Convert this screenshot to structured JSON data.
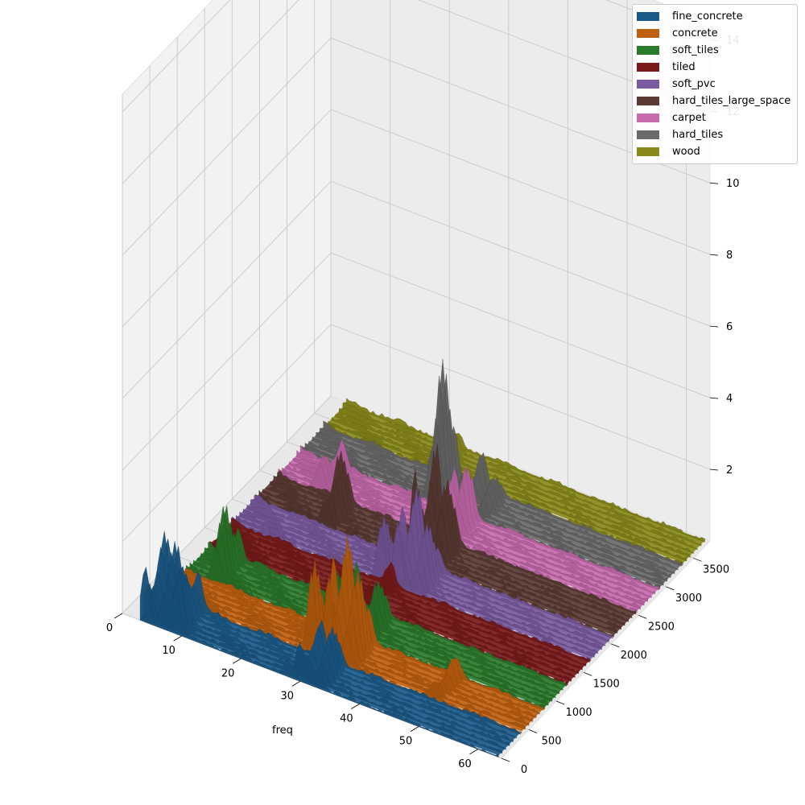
{
  "chart_data": {
    "type": "area",
    "title": "",
    "xlabel": "freq",
    "ylabel": "",
    "zlabel": "",
    "x_ticks": [
      "0",
      "10",
      "20",
      "30",
      "40",
      "50",
      "60"
    ],
    "y_ticks": [
      "0",
      "500",
      "1000",
      "1500",
      "2000",
      "2500",
      "3000",
      "3500"
    ],
    "z_ticks": [
      "2",
      "4",
      "6",
      "8",
      "10",
      "12",
      "14"
    ],
    "xlim": [
      0,
      64
    ],
    "ylim": [
      0,
      3800
    ],
    "zlim": [
      0,
      14.5
    ],
    "legend_position": "top-right",
    "grid": true,
    "series": [
      {
        "name": "fine_concrete",
        "color": "#1a5a8a",
        "y_range": [
          0,
          400
        ],
        "peaks": [
          {
            "x": 4,
            "z": 1.8
          },
          {
            "x": 7,
            "z": 2.0
          },
          {
            "x": 9,
            "z": 1.6
          },
          {
            "x": 30,
            "z": 1.0
          },
          {
            "x": 33,
            "z": 1.2
          }
        ]
      },
      {
        "name": "concrete",
        "color": "#c0600e",
        "y_range": [
          420,
          820
        ],
        "peaks": [
          {
            "x": 28,
            "z": 2.4
          },
          {
            "x": 31,
            "z": 2.8
          },
          {
            "x": 34,
            "z": 2.3
          },
          {
            "x": 49,
            "z": 0.6
          }
        ]
      },
      {
        "name": "soft_tiles",
        "color": "#2a7a2a",
        "y_range": [
          840,
          1240
        ],
        "peaks": [
          {
            "x": 8,
            "z": 1.8
          },
          {
            "x": 28,
            "z": 1.4
          },
          {
            "x": 33,
            "z": 1.2
          }
        ]
      },
      {
        "name": "tiled",
        "color": "#7a1a1a",
        "y_range": [
          1260,
          1660
        ],
        "peaks": [
          {
            "x": 30,
            "z": 0.6
          }
        ]
      },
      {
        "name": "soft_pvc",
        "color": "#7a5aa0",
        "y_range": [
          1680,
          2080
        ],
        "peaks": [
          {
            "x": 28,
            "z": 1.6
          },
          {
            "x": 31,
            "z": 2.2
          },
          {
            "x": 34,
            "z": 1.6
          }
        ]
      },
      {
        "name": "hard_tiles_large_space",
        "color": "#5a3a32",
        "y_range": [
          2100,
          2500
        ],
        "peaks": [
          {
            "x": 15,
            "z": 1.6
          },
          {
            "x": 30,
            "z": 2.6
          },
          {
            "x": 33,
            "z": 2.0
          }
        ]
      },
      {
        "name": "carpet",
        "color": "#c86aae",
        "y_range": [
          2520,
          2920
        ],
        "peaks": [
          {
            "x": 10,
            "z": 0.8
          },
          {
            "x": 29,
            "z": 1.2
          },
          {
            "x": 32,
            "z": 1.6
          }
        ]
      },
      {
        "name": "hard_tiles",
        "color": "#6a6a6a",
        "y_range": [
          2940,
          3340
        ],
        "peaks": [
          {
            "x": 25,
            "z": 3.6
          },
          {
            "x": 30,
            "z": 1.0
          },
          {
            "x": 33,
            "z": 0.7
          }
        ]
      },
      {
        "name": "wood",
        "color": "#8a8a1a",
        "y_range": [
          3360,
          3760
        ],
        "peaks": [
          {
            "x": 22,
            "z": 0.4
          }
        ]
      }
    ]
  }
}
